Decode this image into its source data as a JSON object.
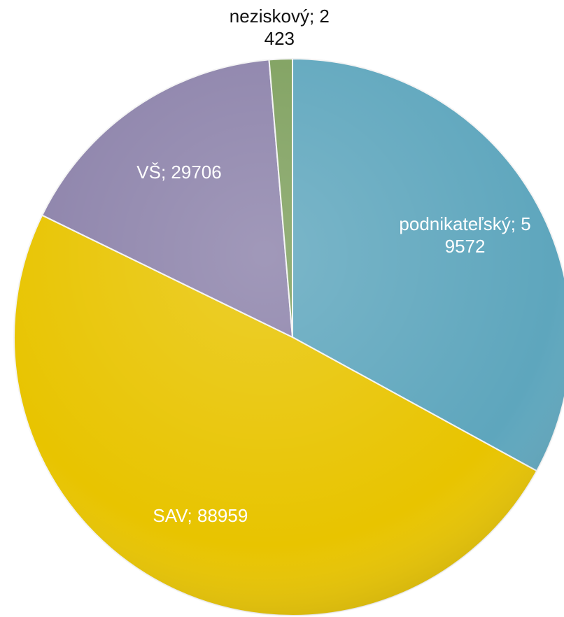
{
  "chart_data": {
    "type": "pie",
    "categories": [
      "podnikateľský",
      "SAV",
      "VŠ",
      "neziskový"
    ],
    "values": [
      59572,
      88959,
      29706,
      2423
    ],
    "value_labels": [
      "podnikateľský; 59572",
      "SAV; 88959",
      "VŠ; 29706",
      "neziskový; 2423"
    ],
    "colors": [
      "#5ea6bd",
      "#e8c400",
      "#8c82aa",
      "#7d9f5c"
    ]
  }
}
